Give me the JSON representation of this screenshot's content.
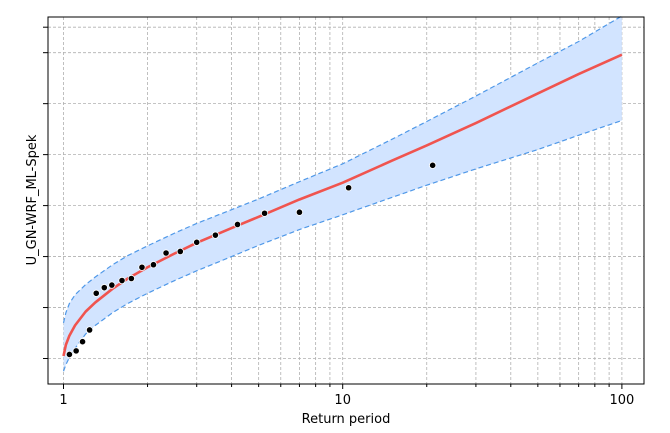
{
  "chart_data": {
    "type": "line",
    "xlabel": "Return period",
    "ylabel": "U_GN-WRF_ML-Spek",
    "x_scale": "log",
    "xlim": [
      0.88,
      120
    ],
    "ylim": [
      0,
      7.2
    ],
    "x_ticks": [
      {
        "value": 1,
        "label": "1"
      },
      {
        "value": 10,
        "label": "10"
      },
      {
        "value": 100,
        "label": "100"
      }
    ],
    "y_ticks": [
      0.5,
      1.5,
      2.5,
      3.5,
      4.5,
      5.5,
      6.5,
      7.0
    ],
    "y_ticks_labeled": false,
    "grid": true,
    "series": [
      {
        "kind": "fit",
        "color": "#f0544f",
        "x": [
          1.0,
          1.02,
          1.05,
          1.1,
          1.2,
          1.3,
          1.5,
          1.7,
          2.0,
          2.5,
          3.0,
          4.0,
          5.0,
          7.0,
          10.0,
          15.0,
          20.0,
          30.0,
          50.0,
          70.0,
          100.0
        ],
        "y": [
          0.55,
          0.77,
          0.95,
          1.15,
          1.42,
          1.6,
          1.87,
          2.07,
          2.29,
          2.56,
          2.77,
          3.06,
          3.28,
          3.62,
          3.95,
          4.38,
          4.68,
          5.12,
          5.7,
          6.08,
          6.46
        ]
      },
      {
        "kind": "upper-band",
        "color": "#4f98e8",
        "x": [
          1.0,
          1.02,
          1.05,
          1.1,
          1.2,
          1.3,
          1.5,
          1.7,
          2.0,
          2.5,
          3.0,
          4.0,
          5.0,
          7.0,
          10.0,
          15.0,
          20.0,
          30.0,
          50.0,
          70.0,
          100.0
        ],
        "y": [
          1.2,
          1.4,
          1.58,
          1.75,
          1.95,
          2.1,
          2.34,
          2.52,
          2.71,
          2.96,
          3.15,
          3.42,
          3.63,
          3.97,
          4.32,
          4.8,
          5.15,
          5.65,
          6.3,
          6.72,
          7.22
        ]
      },
      {
        "kind": "lower-band",
        "color": "#4f98e8",
        "x": [
          1.0,
          1.02,
          1.05,
          1.1,
          1.2,
          1.3,
          1.5,
          1.7,
          2.0,
          2.5,
          3.0,
          4.0,
          5.0,
          7.0,
          10.0,
          15.0,
          20.0,
          30.0,
          50.0,
          70.0,
          100.0
        ],
        "y": [
          0.25,
          0.38,
          0.52,
          0.7,
          0.98,
          1.15,
          1.4,
          1.58,
          1.78,
          2.03,
          2.22,
          2.5,
          2.72,
          3.03,
          3.32,
          3.66,
          3.9,
          4.22,
          4.6,
          4.88,
          5.17
        ]
      },
      {
        "kind": "observed",
        "color": "#000000",
        "x": [
          1.05,
          1.11,
          1.17,
          1.24,
          1.31,
          1.4,
          1.49,
          1.62,
          1.75,
          1.91,
          2.1,
          2.33,
          2.62,
          3.0,
          3.5,
          4.2,
          5.25,
          7.0,
          10.5,
          21.0
        ],
        "y": [
          0.58,
          0.65,
          0.83,
          1.06,
          1.78,
          1.89,
          1.94,
          2.03,
          2.07,
          2.29,
          2.34,
          2.57,
          2.6,
          2.78,
          2.92,
          3.13,
          3.35,
          3.37,
          3.85,
          4.29
        ]
      }
    ]
  }
}
